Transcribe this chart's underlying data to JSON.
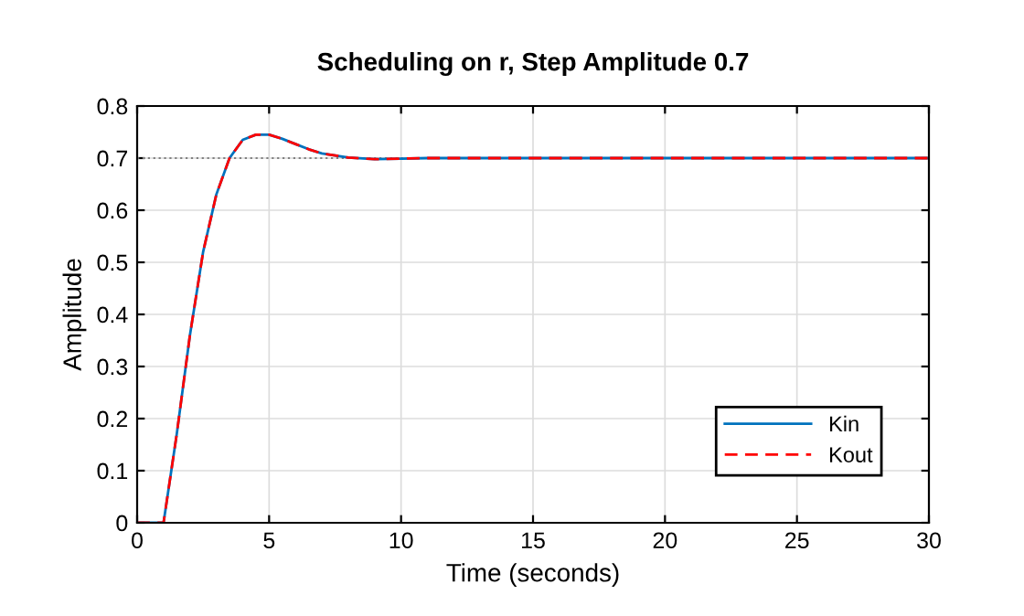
{
  "chart_data": {
    "type": "line",
    "title": "Scheduling on r, Step Amplitude 0.7",
    "xlabel": "Time (seconds)",
    "ylabel": "Amplitude",
    "x": [
      0,
      1,
      1.5,
      2,
      2.5,
      3,
      3.5,
      4,
      4.5,
      5,
      5.5,
      6,
      6.5,
      7,
      8,
      9,
      10,
      11,
      12,
      15,
      20,
      25,
      30
    ],
    "series": [
      {
        "name": "Kin",
        "color": "#0072bd",
        "line_style": "solid",
        "values": [
          0,
          0,
          0.17,
          0.36,
          0.52,
          0.63,
          0.7,
          0.735,
          0.745,
          0.745,
          0.737,
          0.727,
          0.717,
          0.709,
          0.701,
          0.698,
          0.699,
          0.7,
          0.7,
          0.7,
          0.7,
          0.7,
          0.7
        ]
      },
      {
        "name": "Kout",
        "color": "#ff0000",
        "line_style": "dashed",
        "values": [
          0,
          0,
          0.17,
          0.36,
          0.52,
          0.63,
          0.7,
          0.735,
          0.745,
          0.745,
          0.737,
          0.727,
          0.717,
          0.709,
          0.701,
          0.698,
          0.699,
          0.7,
          0.7,
          0.7,
          0.7,
          0.7,
          0.7
        ]
      }
    ],
    "ref_lines": [
      {
        "axis": "y",
        "value": 0.7,
        "color": "#808080",
        "line_style": "dotted"
      }
    ],
    "xlim": [
      0,
      30
    ],
    "xticks": [
      0,
      5,
      10,
      15,
      20,
      25,
      30
    ],
    "ylim": [
      0,
      0.8
    ],
    "yticks": [
      0,
      0.1,
      0.2,
      0.3,
      0.4,
      0.5,
      0.6,
      0.7,
      0.8
    ],
    "grid": true,
    "legend": "lower right"
  }
}
